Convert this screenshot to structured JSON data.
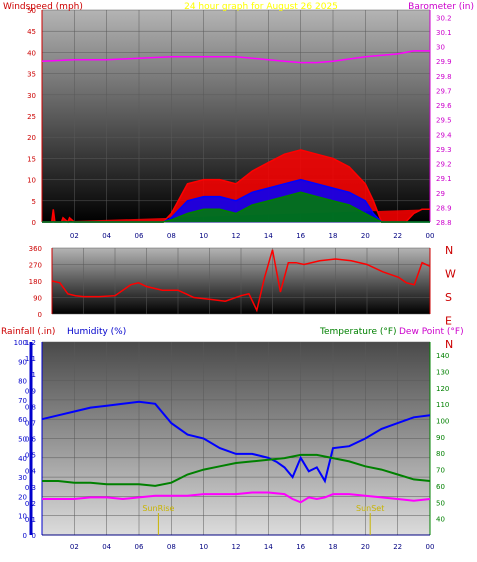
{
  "chart_data": [
    {
      "type": "line",
      "title": "24 hour graph for August 26 2025",
      "left_axis_label": "Windspeed (mph)",
      "right_axis_label": "Barometer (in)",
      "left_ticks": [
        "0",
        "5",
        "10",
        "15",
        "20",
        "25",
        "30",
        "35",
        "40",
        "45",
        "50"
      ],
      "right_ticks": [
        "28.8",
        "28.9",
        "29",
        "29.1",
        "29.2",
        "29.3",
        "29.4",
        "29.5",
        "29.6",
        "29.7",
        "29.8",
        "29.9",
        "30",
        "30.1",
        "30.2"
      ],
      "x_ticks": [
        "02",
        "04",
        "06",
        "08",
        "10",
        "12",
        "14",
        "16",
        "18",
        "20",
        "22",
        "00"
      ],
      "ylim_left": [
        0,
        50
      ],
      "ylim_right": [
        28.8,
        30.25
      ],
      "xlim_hours": [
        0,
        24
      ],
      "series": [
        {
          "color": "#ff00ff",
          "axis": "right",
          "x": [
            0,
            2,
            4,
            6,
            8,
            10,
            12,
            14,
            15,
            16,
            17,
            18,
            20,
            22,
            23,
            24
          ],
          "y": [
            29.9,
            29.91,
            29.91,
            29.92,
            29.93,
            29.93,
            29.93,
            29.91,
            29.9,
            29.89,
            29.89,
            29.9,
            29.93,
            29.95,
            29.97,
            29.97
          ]
        },
        {
          "color": "#ff0000",
          "axis": "left",
          "x": [
            0,
            0.6,
            0.7,
            0.8,
            1.2,
            1.3,
            1.6,
            1.7,
            2,
            6,
            7.5,
            8,
            9,
            10,
            11,
            12,
            13,
            14,
            15,
            16,
            17,
            18,
            19,
            20,
            20.5,
            21,
            22.5,
            23,
            23.5,
            24
          ],
          "y": [
            0,
            0,
            3,
            0,
            0,
            1,
            0,
            1,
            0,
            0,
            0,
            2,
            9,
            10,
            10,
            9,
            12,
            14,
            16,
            17,
            16,
            15,
            13,
            9,
            5,
            0,
            0,
            2,
            3,
            3
          ]
        },
        {
          "color": "#0000ff",
          "axis": "left",
          "x": [
            0,
            7.5,
            8,
            9,
            10,
            11,
            12,
            13,
            14,
            15,
            16,
            17,
            18,
            19,
            20,
            20.5,
            21,
            24
          ],
          "y": [
            0,
            0,
            1,
            5,
            6,
            6,
            5,
            7,
            8,
            9,
            10,
            9,
            8,
            7,
            5,
            2,
            0,
            0
          ]
        },
        {
          "color": "#008000",
          "axis": "left",
          "x": [
            0,
            7.5,
            8,
            9,
            10,
            11,
            12,
            13,
            14,
            15,
            16,
            17,
            18,
            19,
            20,
            20.5,
            21,
            24
          ],
          "y": [
            0,
            0,
            0.5,
            2,
            3,
            3,
            2,
            4,
            5,
            6,
            7,
            6,
            5,
            4,
            2,
            1,
            0,
            0
          ]
        }
      ],
      "bottom_markers": [
        {
          "x": 0,
          "label": "0"
        }
      ]
    },
    {
      "type": "line",
      "right_axis_labels": [
        "N",
        "W",
        "S",
        "E",
        "N"
      ],
      "left_ticks": [
        "0",
        "90",
        "180",
        "270",
        "360"
      ],
      "ylim": [
        0,
        360
      ],
      "xlim_hours": [
        0,
        24
      ],
      "series": [
        {
          "color": "#ff0000",
          "x": [
            0,
            0.5,
            1,
            1.5,
            2,
            3,
            4,
            5,
            5.5,
            6,
            7,
            8,
            8.5,
            9,
            10,
            11,
            12,
            12.5,
            13,
            13.5,
            14,
            14.5,
            15,
            15.5,
            16,
            17,
            18,
            19,
            20,
            21,
            22,
            22.5,
            23,
            23.5,
            24
          ],
          "y": [
            180,
            170,
            110,
            100,
            95,
            95,
            100,
            160,
            170,
            150,
            130,
            130,
            110,
            90,
            80,
            70,
            100,
            110,
            20,
            200,
            350,
            120,
            280,
            280,
            270,
            290,
            300,
            290,
            270,
            230,
            200,
            170,
            160,
            280,
            260
          ]
        }
      ]
    },
    {
      "type": "line",
      "rain_label": "Rainfall (.in)",
      "humidity_label": "Humidity (%)",
      "temperature_label": "Temperature (°F)",
      "dewpoint_label": "Dew Point (°F)",
      "left_ticks_humidity": [
        "0",
        "10",
        "20",
        "30",
        "40",
        "50",
        "60",
        "70",
        "80",
        "90",
        "100"
      ],
      "left_ticks_rain": [
        "0",
        "0.1",
        "0.2",
        "0.3",
        "0.4",
        "0.5",
        "0.6",
        "0.7",
        "0.8",
        "0.9",
        "1",
        "1.1",
        "1.2"
      ],
      "right_ticks": [
        "40",
        "50",
        "60",
        "70",
        "80",
        "90",
        "100",
        "110",
        "120",
        "130",
        "140"
      ],
      "x_ticks": [
        "02",
        "04",
        "06",
        "08",
        "10",
        "12",
        "14",
        "16",
        "18",
        "20",
        "22",
        "00"
      ],
      "ylim_humidity": [
        0,
        100
      ],
      "ylim_temp": [
        30,
        148
      ],
      "annotations": [
        {
          "x": 7.2,
          "label": "SunRise"
        },
        {
          "x": 20.3,
          "label": "SunSet"
        }
      ],
      "series": [
        {
          "name": "Humidity",
          "color": "#0000ff",
          "axis": "humidity",
          "x": [
            0,
            1,
            2,
            3,
            4,
            5,
            6,
            7,
            8,
            9,
            10,
            11,
            12,
            13,
            14,
            14.5,
            15,
            15.5,
            16,
            16.5,
            17,
            17.5,
            18,
            19,
            20,
            21,
            22,
            23,
            24
          ],
          "y": [
            60,
            62,
            64,
            66,
            67,
            68,
            69,
            68,
            58,
            52,
            50,
            45,
            42,
            42,
            40,
            38,
            35,
            30,
            40,
            33,
            35,
            28,
            45,
            46,
            50,
            55,
            58,
            61,
            62
          ]
        },
        {
          "name": "Temperature",
          "color": "#008000",
          "axis": "temp",
          "x": [
            0,
            1,
            2,
            3,
            4,
            5,
            6,
            7,
            8,
            9,
            10,
            11,
            12,
            13,
            14,
            15,
            16,
            17,
            18,
            19,
            20,
            21,
            22,
            23,
            24
          ],
          "y": [
            63,
            63,
            62,
            62,
            61,
            61,
            61,
            60,
            62,
            67,
            70,
            72,
            74,
            75,
            76,
            77,
            79,
            79,
            77,
            75,
            72,
            70,
            67,
            64,
            63
          ]
        },
        {
          "name": "Dew Point",
          "color": "#ff00ff",
          "axis": "temp",
          "x": [
            0,
            1,
            2,
            3,
            4,
            5,
            6,
            7,
            8,
            9,
            10,
            11,
            12,
            13,
            14,
            15,
            15.5,
            16,
            16.5,
            17,
            17.5,
            18,
            19,
            20,
            21,
            22,
            23,
            24
          ],
          "y": [
            52,
            52,
            52,
            53,
            53,
            52,
            53,
            54,
            54,
            54,
            55,
            55,
            55,
            56,
            56,
            55,
            52,
            50,
            53,
            52,
            53,
            55,
            55,
            54,
            53,
            52,
            51,
            52
          ]
        }
      ]
    }
  ]
}
